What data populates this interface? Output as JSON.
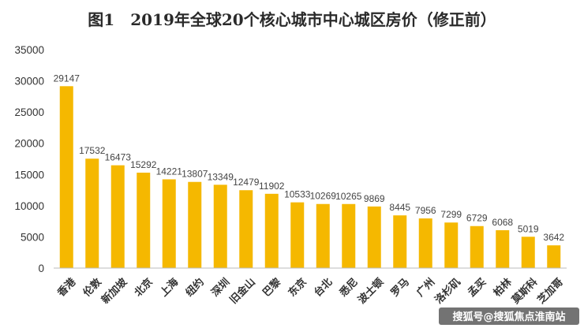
{
  "chart_data": {
    "type": "bar",
    "title": "图1　2019年全球20个核心城市中心城区房价（修正前）",
    "categories": [
      "香港",
      "伦敦",
      "新加坡",
      "北京",
      "上海",
      "纽约",
      "深圳",
      "旧金山",
      "巴黎",
      "东京",
      "台北",
      "悉尼",
      "波士顿",
      "罗马",
      "广州",
      "洛杉矶",
      "孟买",
      "柏林",
      "莫斯科",
      "芝加哥"
    ],
    "values": [
      29147,
      17532,
      16473,
      15292,
      14221,
      13807,
      13349,
      12479,
      11902,
      10533,
      10269,
      10265,
      9869,
      8445,
      7956,
      7299,
      6729,
      6068,
      5019,
      3642
    ],
    "ylim": [
      0,
      35000
    ],
    "yticks": [
      0,
      5000,
      10000,
      15000,
      20000,
      25000,
      30000,
      35000
    ],
    "bar_color": "#f5b800",
    "grid": false,
    "xlabel": "",
    "ylabel": ""
  },
  "watermark": "搜狐号@搜狐焦点淮南站"
}
